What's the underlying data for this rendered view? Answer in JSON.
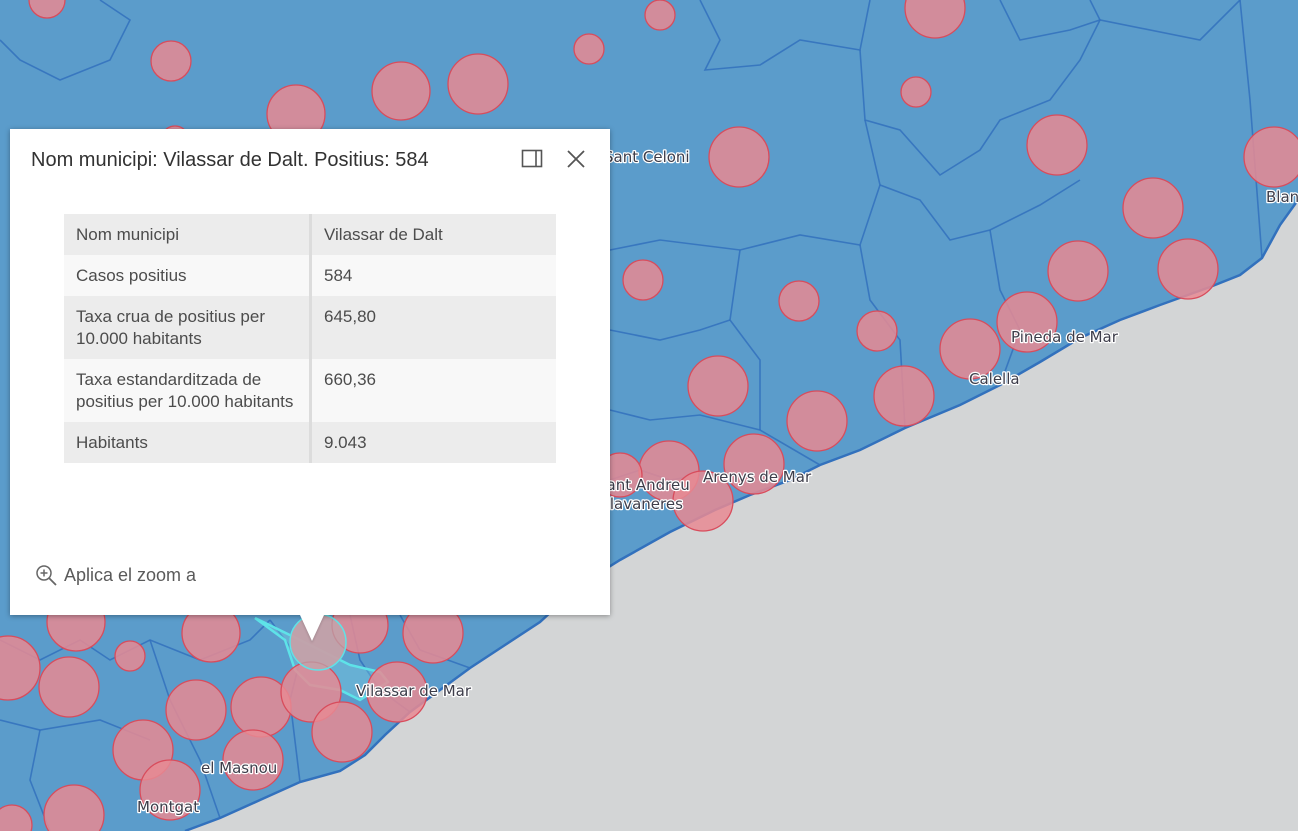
{
  "map": {
    "labels": [
      "Sant Celoni",
      "Blanes",
      "Pineda de Mar",
      "Calella",
      "Arenys de Mar",
      "Sant Andreu",
      "de Llavaneres",
      "Vilassar de Mar",
      "el Masnou",
      "Montgat"
    ],
    "colors": {
      "water": "#d3d5d6",
      "land": "#5b9ccb",
      "border": "#3271bd",
      "bubble": "#e88a93",
      "bubble_stroke": "#d84c5c",
      "selected": "#5ee3e8"
    },
    "marker_icon": "proportional-circle-icon"
  },
  "popup": {
    "title": "Nom municipi: Vilassar de Dalt. Positius: 584",
    "dock_icon": "dock-panel-icon",
    "close_icon": "close-icon",
    "rows": [
      {
        "key": "Nom municipi",
        "value": "Vilassar de Dalt"
      },
      {
        "key": "Casos positius",
        "value": "584"
      },
      {
        "key": "Taxa crua de positius per 10.000 habitants",
        "value": "645,80"
      },
      {
        "key": "Taxa estandarditzada de positius per 10.000 habitants",
        "value": "660,36"
      },
      {
        "key": "Habitants",
        "value": "9.043"
      }
    ],
    "zoom_label": "Aplica el zoom a",
    "zoom_icon": "zoom-in-icon"
  }
}
